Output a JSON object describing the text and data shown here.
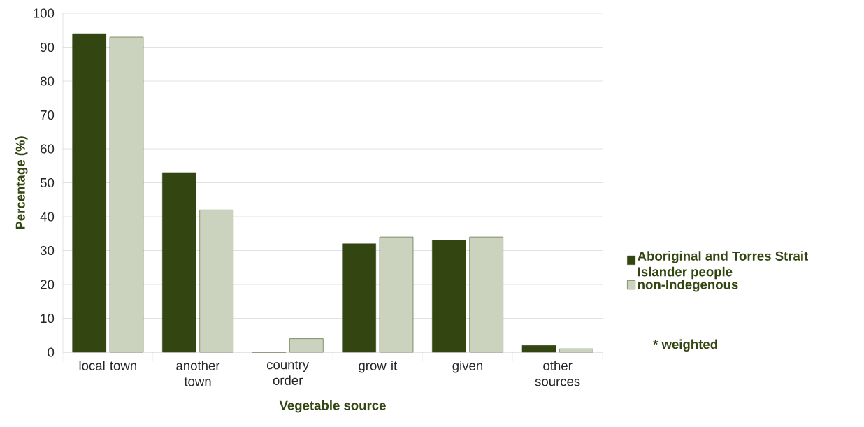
{
  "chart_data": {
    "type": "bar",
    "xlabel": "Vegetable source",
    "ylabel": "Percentage (%)",
    "categories": [
      "local town",
      "another town",
      "country order",
      "grow it",
      "given",
      "other sources"
    ],
    "series": [
      {
        "name": "Aboriginal and Torres Strait Islander people",
        "color": "#334510",
        "values": [
          94,
          53,
          0,
          32,
          33,
          2
        ]
      },
      {
        "name": "non-Indegenous",
        "color": "#cbd3be",
        "values": [
          93,
          42,
          4,
          34,
          34,
          1
        ]
      }
    ],
    "ylim": [
      0,
      100
    ],
    "yticks": [
      0,
      10,
      20,
      30,
      40,
      50,
      60,
      70,
      80,
      90,
      100
    ],
    "grid": "y",
    "legend": "right",
    "annotations": [
      "* weighted"
    ]
  }
}
